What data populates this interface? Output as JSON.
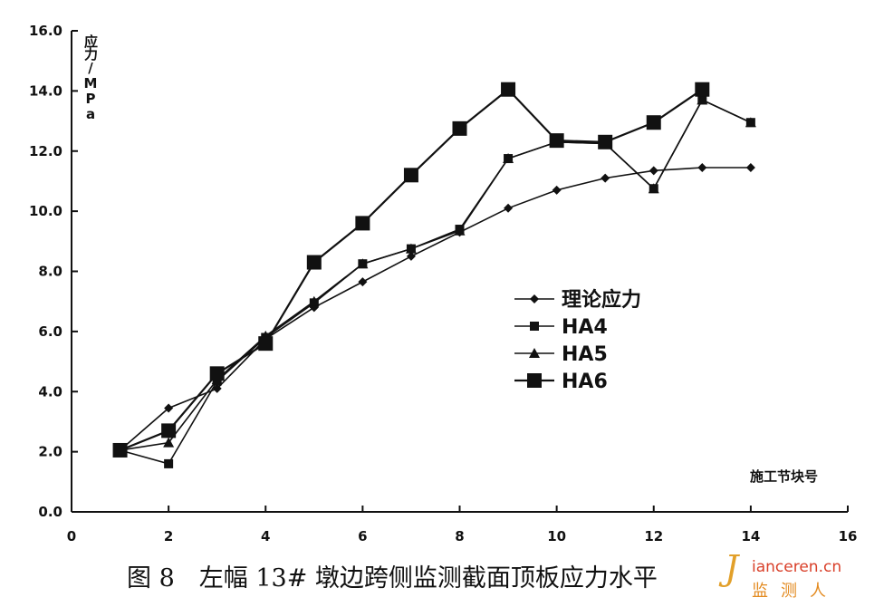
{
  "chart_data": {
    "type": "line",
    "ylabel": "应力/MPa",
    "xlabel": "施工节块号",
    "xlim": [
      0,
      16
    ],
    "ylim": [
      0,
      16
    ],
    "x_ticks": [
      "0",
      "2",
      "4",
      "6",
      "8",
      "10",
      "12",
      "14",
      "16"
    ],
    "y_ticks": [
      "0.0",
      "2.0",
      "4.0",
      "6.0",
      "8.0",
      "10.0",
      "12.0",
      "14.0",
      "16.0"
    ],
    "grid": false,
    "legend_position": "right-middle",
    "series": [
      {
        "name": "理论应力",
        "marker": "diamond",
        "x": [
          1,
          2,
          3,
          4,
          5,
          6,
          7,
          8,
          9,
          10,
          11,
          12,
          13,
          14
        ],
        "y": [
          2.05,
          3.45,
          4.1,
          5.75,
          6.8,
          7.65,
          8.5,
          9.3,
          10.1,
          10.7,
          11.1,
          11.35,
          11.45,
          11.45
        ]
      },
      {
        "name": "HA4",
        "marker": "square-small",
        "x": [
          1,
          2,
          3,
          4,
          5,
          6,
          7,
          8,
          9,
          10,
          11,
          12,
          13,
          14
        ],
        "y": [
          2.05,
          1.6,
          4.35,
          5.8,
          6.95,
          8.25,
          8.75,
          9.4,
          11.75,
          12.3,
          12.25,
          10.75,
          13.7,
          12.95
        ]
      },
      {
        "name": "HA5",
        "marker": "triangle",
        "x": [
          1,
          2,
          3,
          4,
          5,
          6,
          7,
          8,
          9,
          10,
          11,
          12,
          13,
          14
        ],
        "y": [
          2.05,
          2.3,
          4.4,
          5.85,
          7.0,
          8.25,
          8.75,
          9.35,
          11.75,
          12.3,
          12.25,
          10.75,
          13.7,
          12.95
        ]
      },
      {
        "name": "HA6",
        "marker": "square-large",
        "x": [
          1,
          2,
          3,
          4,
          5,
          6,
          7,
          8,
          9,
          10,
          11,
          12,
          13
        ],
        "y": [
          2.05,
          2.7,
          4.6,
          5.6,
          8.3,
          9.6,
          11.2,
          12.75,
          14.05,
          12.35,
          12.3,
          12.95,
          14.05
        ]
      }
    ]
  },
  "caption": "图 8　左幅 13# 墩边跨侧监测截面顶板应力水平",
  "watermark": {
    "logo": "J",
    "url": "ianceren.cn",
    "name": "监测人"
  }
}
